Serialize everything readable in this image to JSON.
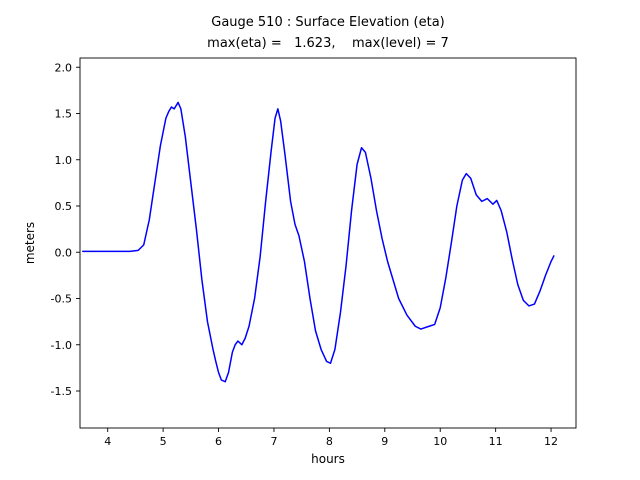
{
  "chart_data": {
    "type": "line",
    "title": "Gauge 510 : Surface Elevation (eta)",
    "subtitle": "max(eta) =   1.623,    max(level) = 7",
    "xlabel": "hours",
    "ylabel": "meters",
    "xlim": [
      3.5,
      12.45
    ],
    "ylim": [
      -1.9,
      2.1
    ],
    "grid": false,
    "line_color": "#0000ff",
    "line_width": 1.5,
    "xticks": [
      {
        "v": 4,
        "label": "4"
      },
      {
        "v": 5,
        "label": "5"
      },
      {
        "v": 6,
        "label": "6"
      },
      {
        "v": 7,
        "label": "7"
      },
      {
        "v": 8,
        "label": "8"
      },
      {
        "v": 9,
        "label": "9"
      },
      {
        "v": 10,
        "label": "10"
      },
      {
        "v": 11,
        "label": "11"
      },
      {
        "v": 12,
        "label": "12"
      }
    ],
    "yticks": [
      {
        "v": -1.5,
        "label": "-1.5"
      },
      {
        "v": -1.0,
        "label": "-1.0"
      },
      {
        "v": -0.5,
        "label": "-0.5"
      },
      {
        "v": 0.0,
        "label": "0.0"
      },
      {
        "v": 0.5,
        "label": "0.5"
      },
      {
        "v": 1.0,
        "label": "1.0"
      },
      {
        "v": 1.5,
        "label": "1.5"
      },
      {
        "v": 2.0,
        "label": "2.0"
      }
    ],
    "series_name": "eta",
    "points": [
      [
        3.55,
        0.01
      ],
      [
        3.8,
        0.01
      ],
      [
        4.0,
        0.01
      ],
      [
        4.2,
        0.01
      ],
      [
        4.4,
        0.01
      ],
      [
        4.55,
        0.02
      ],
      [
        4.65,
        0.08
      ],
      [
        4.75,
        0.35
      ],
      [
        4.85,
        0.75
      ],
      [
        4.95,
        1.15
      ],
      [
        5.05,
        1.45
      ],
      [
        5.1,
        1.52
      ],
      [
        5.15,
        1.57
      ],
      [
        5.2,
        1.55
      ],
      [
        5.27,
        1.62
      ],
      [
        5.32,
        1.55
      ],
      [
        5.4,
        1.25
      ],
      [
        5.5,
        0.75
      ],
      [
        5.6,
        0.25
      ],
      [
        5.7,
        -0.3
      ],
      [
        5.8,
        -0.75
      ],
      [
        5.9,
        -1.05
      ],
      [
        5.95,
        -1.18
      ],
      [
        6.0,
        -1.3
      ],
      [
        6.05,
        -1.38
      ],
      [
        6.12,
        -1.4
      ],
      [
        6.18,
        -1.3
      ],
      [
        6.25,
        -1.08
      ],
      [
        6.3,
        -1.0
      ],
      [
        6.35,
        -0.96
      ],
      [
        6.42,
        -1.0
      ],
      [
        6.48,
        -0.93
      ],
      [
        6.55,
        -0.8
      ],
      [
        6.65,
        -0.5
      ],
      [
        6.75,
        -0.05
      ],
      [
        6.85,
        0.55
      ],
      [
        6.95,
        1.1
      ],
      [
        7.02,
        1.45
      ],
      [
        7.07,
        1.55
      ],
      [
        7.12,
        1.42
      ],
      [
        7.2,
        1.05
      ],
      [
        7.3,
        0.55
      ],
      [
        7.38,
        0.3
      ],
      [
        7.45,
        0.18
      ],
      [
        7.55,
        -0.1
      ],
      [
        7.65,
        -0.5
      ],
      [
        7.75,
        -0.85
      ],
      [
        7.85,
        -1.05
      ],
      [
        7.95,
        -1.18
      ],
      [
        8.02,
        -1.2
      ],
      [
        8.1,
        -1.05
      ],
      [
        8.2,
        -0.65
      ],
      [
        8.3,
        -0.15
      ],
      [
        8.4,
        0.45
      ],
      [
        8.5,
        0.95
      ],
      [
        8.58,
        1.13
      ],
      [
        8.65,
        1.08
      ],
      [
        8.75,
        0.8
      ],
      [
        8.85,
        0.45
      ],
      [
        8.95,
        0.15
      ],
      [
        9.05,
        -0.1
      ],
      [
        9.15,
        -0.3
      ],
      [
        9.25,
        -0.5
      ],
      [
        9.4,
        -0.68
      ],
      [
        9.55,
        -0.8
      ],
      [
        9.65,
        -0.83
      ],
      [
        9.8,
        -0.8
      ],
      [
        9.9,
        -0.78
      ],
      [
        10.0,
        -0.6
      ],
      [
        10.1,
        -0.28
      ],
      [
        10.2,
        0.1
      ],
      [
        10.3,
        0.5
      ],
      [
        10.4,
        0.78
      ],
      [
        10.47,
        0.85
      ],
      [
        10.55,
        0.8
      ],
      [
        10.65,
        0.62
      ],
      [
        10.75,
        0.55
      ],
      [
        10.85,
        0.58
      ],
      [
        10.95,
        0.52
      ],
      [
        11.02,
        0.56
      ],
      [
        11.1,
        0.45
      ],
      [
        11.2,
        0.22
      ],
      [
        11.3,
        -0.08
      ],
      [
        11.4,
        -0.35
      ],
      [
        11.5,
        -0.52
      ],
      [
        11.6,
        -0.58
      ],
      [
        11.7,
        -0.56
      ],
      [
        11.8,
        -0.42
      ],
      [
        11.9,
        -0.25
      ],
      [
        12.0,
        -0.1
      ],
      [
        12.05,
        -0.04
      ]
    ]
  }
}
